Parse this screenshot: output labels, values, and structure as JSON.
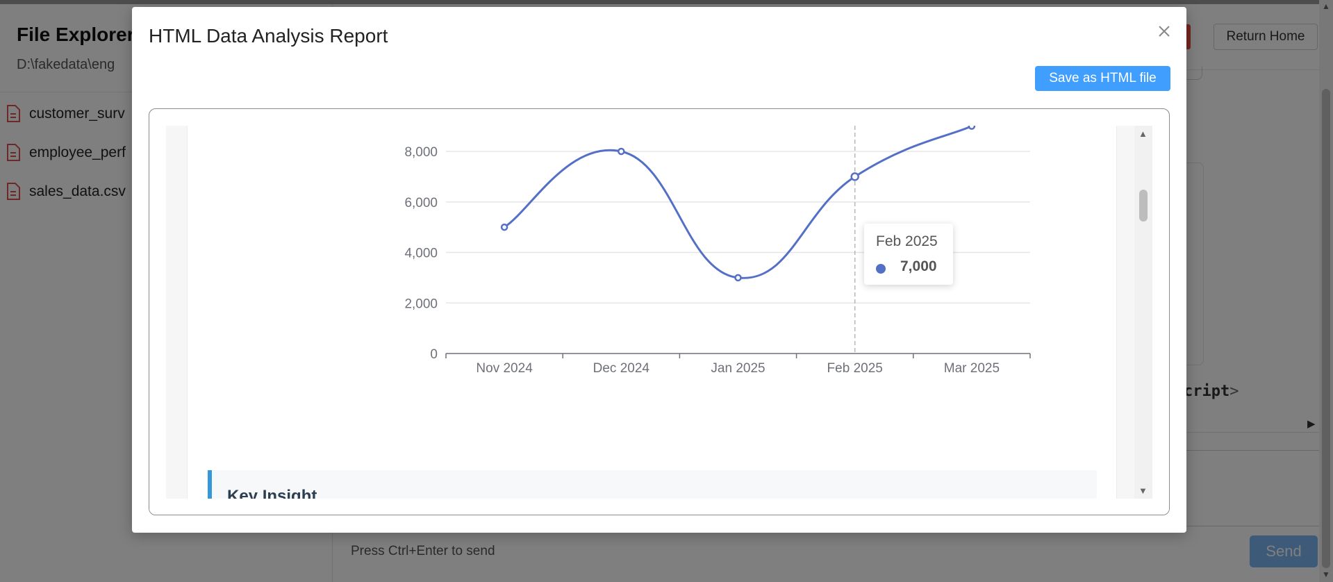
{
  "app": {
    "sidebar": {
      "title": "File Explorer",
      "path": "D:\\fakedata\\eng",
      "files": [
        {
          "name": "customer_surv",
          "icon": "document-icon"
        },
        {
          "name": "employee_perf",
          "icon": "document-icon"
        },
        {
          "name": "sales_data.csv",
          "icon": "document-icon"
        }
      ]
    },
    "header": {
      "return_home_label": "Return Home"
    },
    "code_fragment": {
      "text": "cript",
      "tag_close": ">"
    },
    "composer": {
      "hint": "Press Ctrl+Enter to send",
      "send_label": "Send"
    },
    "colors": {
      "accent_blue": "#409eff",
      "danger_red": "#e74c3c",
      "send_blue": "#7bb4f2"
    }
  },
  "modal": {
    "title": "HTML Data Analysis Report",
    "save_label": "Save as HTML file",
    "close_icon": "close-icon",
    "tooltip": {
      "title": "Feb 2025",
      "value": "7,000",
      "dot_color": "#5470c6"
    },
    "insight_title": "Key Insight"
  },
  "chart_data": {
    "type": "line",
    "categories": [
      "Nov 2024",
      "Dec 2024",
      "Jan 2025",
      "Feb 2025",
      "Mar 2025"
    ],
    "series": [
      {
        "values": [
          5000,
          8000,
          3000,
          7000,
          9000
        ],
        "color": "#5470c6",
        "smooth": true
      }
    ],
    "y_ticks": [
      "0",
      "2,000",
      "4,000",
      "6,000",
      "8,000"
    ],
    "ylim": [
      0,
      8000
    ],
    "grid": true,
    "highlighted_category": "Feb 2025",
    "title": "",
    "xlabel": "",
    "ylabel": ""
  }
}
